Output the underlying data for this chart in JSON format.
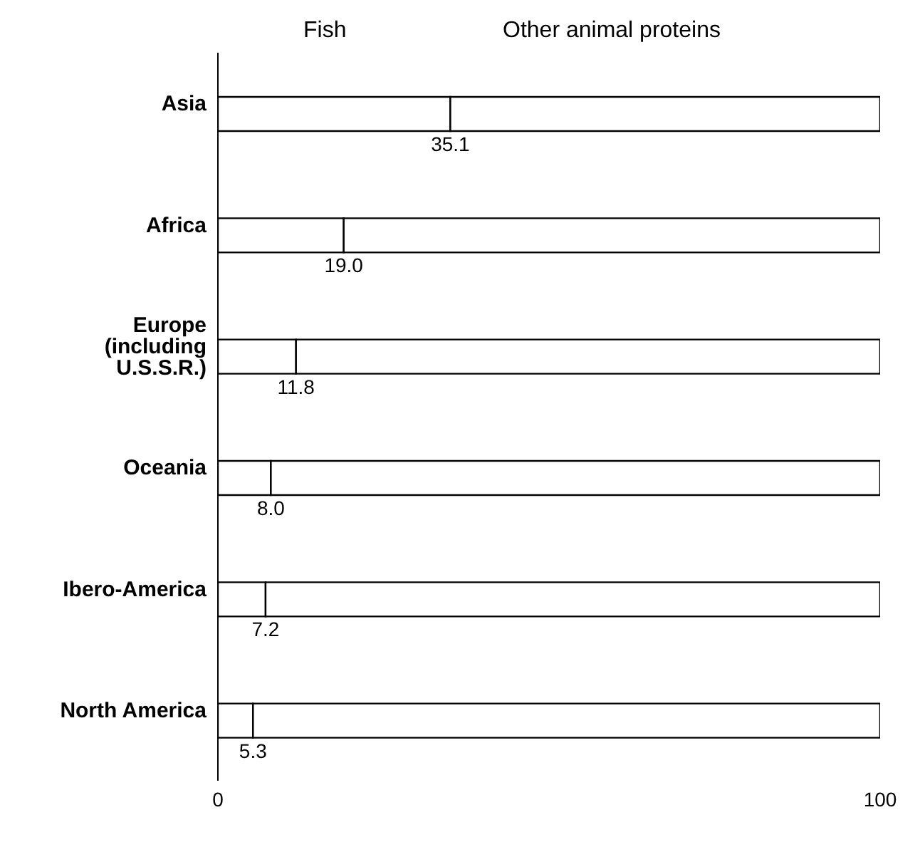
{
  "chart_data": {
    "type": "bar",
    "orientation": "horizontal",
    "stacked": true,
    "categories": [
      "Asia",
      "Africa",
      "Europe (including U.S.S.R.)",
      "Oceania",
      "Ibero-America",
      "North America"
    ],
    "series": [
      {
        "name": "Fish",
        "color": "#ffffff",
        "values": [
          35.1,
          19.0,
          11.8,
          8.0,
          7.2,
          5.3
        ],
        "value_labels": [
          "35.1",
          "19.0",
          "11.8",
          "8.0",
          "7.2",
          "5.3"
        ]
      },
      {
        "name": "Other animal proteins",
        "color": "#ffffff",
        "values": [
          64.9,
          81.0,
          88.2,
          92.0,
          92.8,
          94.7
        ]
      }
    ],
    "xlim": [
      0,
      100
    ],
    "xticks": [
      0,
      100
    ],
    "grid": false,
    "legend": "top"
  }
}
